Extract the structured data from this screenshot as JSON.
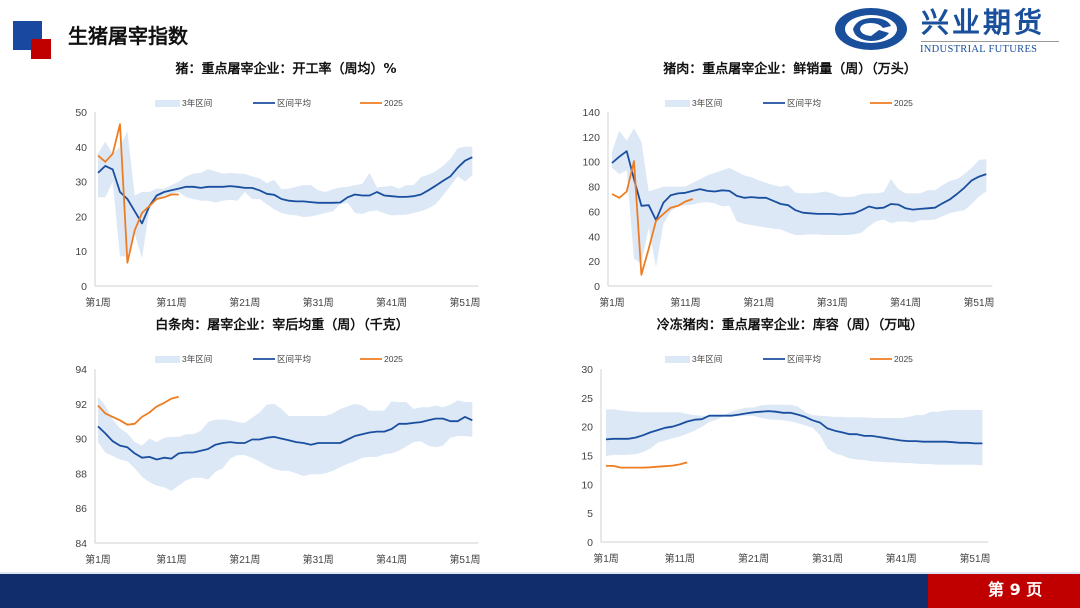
{
  "header": {
    "title": "生猪屠宰指数"
  },
  "logo": {
    "cn": "兴业期货",
    "en": "INDUSTRIAL FUTURES"
  },
  "footer": {
    "page": "第 9 页"
  },
  "colors": {
    "band": "#dce8f6",
    "avg": "#1a4fa0",
    "y2025": "#ee7d22",
    "accent_blue": "#122d6b",
    "accent_red": "#c00000"
  },
  "legend": {
    "band": "3年区间",
    "avg": "区间平均",
    "current": "2025"
  },
  "chart_data": [
    {
      "type": "area+line",
      "title": "猪：重点屠宰企业：开工率（周均）%",
      "ylim": [
        0,
        50
      ],
      "yticks": [
        0,
        10,
        20,
        30,
        40,
        50
      ],
      "xticks": [
        "第1周",
        "第11周",
        "第21周",
        "第31周",
        "第41周",
        "第51周"
      ],
      "x": "周 1-52",
      "series": [
        {
          "name": "3年区间",
          "upper": [
            38,
            41.5,
            38,
            40,
            44.5,
            26,
            27,
            27,
            28,
            28,
            29,
            30,
            31.5,
            32.3,
            32.5,
            33.6,
            33,
            32.3,
            32.5,
            32.3,
            32.2,
            31.5,
            31,
            29.5,
            30.5,
            27.8,
            28,
            28.5,
            29,
            29,
            27.5,
            27,
            27.8,
            28.3,
            28.5,
            29,
            29.3,
            32.5,
            28.3,
            28.5,
            28.8,
            28,
            29,
            29,
            31.3,
            32,
            33,
            34.5,
            36.5,
            39.6,
            40,
            40
          ],
          "lower": [
            25.5,
            25.5,
            30,
            8.5,
            8.5,
            15,
            8,
            22,
            25,
            26,
            26.5,
            27,
            25.5,
            25,
            24.5,
            24.5,
            24,
            24.5,
            24.8,
            24.5,
            27,
            25,
            25,
            23.5,
            22,
            21,
            20.5,
            20.3,
            19.8,
            20,
            20.5,
            21,
            21.5,
            23.5,
            24,
            21,
            20.7,
            21.5,
            21.7,
            20.9,
            20.3,
            20.4,
            20.5,
            21,
            21.5,
            22.3,
            23.5,
            26,
            28.7,
            31.5,
            30,
            31.8
          ]
        },
        {
          "name": "区间平均",
          "values": [
            32.5,
            34.5,
            33.5,
            27,
            25,
            21.5,
            18,
            23,
            26,
            27,
            27.5,
            28,
            28.5,
            28.5,
            28.2,
            28.5,
            28.5,
            28.5,
            28.7,
            28.5,
            28.2,
            28.2,
            27.5,
            26.5,
            26.2,
            25,
            24.5,
            24.3,
            24.3,
            24.1,
            23.9,
            23.9,
            23.9,
            24,
            25.5,
            26.3,
            26,
            26,
            27,
            26,
            25.8,
            25.6,
            25.6,
            25.8,
            26.3,
            27.5,
            28.8,
            30.2,
            31.5,
            34,
            36,
            37
          ]
        },
        {
          "name": "2025",
          "values": [
            37.5,
            35.7,
            38,
            46.5,
            6.7,
            16,
            21,
            23,
            25,
            25.5,
            26.3,
            26.3
          ]
        }
      ]
    },
    {
      "type": "area+line",
      "title": "猪肉：重点屠宰企业：鲜销量（周）（万头）",
      "ylim": [
        0,
        140
      ],
      "yticks": [
        0,
        20,
        40,
        60,
        80,
        100,
        120,
        140
      ],
      "xticks": [
        "第1周",
        "第11周",
        "第21周",
        "第31周",
        "第41周",
        "第51周"
      ],
      "series": [
        {
          "name": "3年区间",
          "upper": [
            108,
            125,
            117,
            127,
            116,
            76,
            78,
            80,
            80,
            80,
            80,
            83,
            86,
            89,
            91,
            93,
            95,
            92,
            89,
            87.5,
            85,
            83,
            81,
            80,
            81,
            75,
            74.5,
            74.5,
            75,
            76,
            74.5,
            72,
            71.5,
            72,
            74,
            74.5,
            74.5,
            75.5,
            86,
            78,
            74.5,
            74.5,
            74.5,
            77,
            77,
            81,
            84.5,
            86,
            90,
            95,
            101.5,
            102
          ],
          "lower": [
            95,
            90,
            93,
            22,
            18,
            47,
            15,
            50,
            60,
            64,
            65,
            65.5,
            67,
            67.5,
            66.5,
            64,
            64.5,
            52,
            50,
            49,
            48,
            47,
            46,
            45.5,
            43,
            41,
            41,
            41.5,
            41.5,
            41,
            41,
            41,
            41,
            41.5,
            43,
            48,
            52,
            53.5,
            50.5,
            52,
            52,
            51,
            53,
            53,
            53.5,
            56,
            58.5,
            60,
            61,
            66,
            72,
            76
          ]
        },
        {
          "name": "区间平均",
          "values": [
            99,
            104,
            108.5,
            86,
            64.5,
            65,
            53,
            67,
            73,
            74.5,
            75,
            76.5,
            78,
            76.5,
            76,
            77,
            76.5,
            72.5,
            71,
            71.5,
            71,
            71,
            68.5,
            66,
            65,
            61,
            59,
            58.5,
            58,
            58,
            58,
            57.5,
            58,
            58.5,
            61,
            64,
            62.5,
            63,
            66,
            65.5,
            62.5,
            61.5,
            62,
            62.5,
            63,
            66.5,
            69.5,
            74,
            79,
            85,
            88,
            90
          ]
        },
        {
          "name": "2025",
          "values": [
            74,
            71,
            76,
            100.5,
            9,
            30,
            52.5,
            58,
            63,
            64.5,
            68,
            70
          ]
        }
      ]
    },
    {
      "type": "area+line",
      "title": "白条肉：屠宰企业：宰后均重（周）（千克）",
      "ylim": [
        84,
        94
      ],
      "yticks": [
        84,
        86,
        88,
        90,
        92,
        94
      ],
      "xticks": [
        "第1周",
        "第11周",
        "第21周",
        "第31周",
        "第41周",
        "第51周"
      ],
      "series": [
        {
          "name": "3年区间",
          "upper": [
            92.4,
            91.9,
            91.1,
            90.6,
            90.3,
            89.8,
            89.6,
            90,
            89.8,
            90.05,
            90.1,
            90.1,
            90.25,
            90.25,
            90.45,
            90.95,
            91.1,
            91.1,
            91.05,
            90.95,
            90.9,
            91.2,
            91.5,
            91.95,
            92,
            91.7,
            91.3,
            91.3,
            91.3,
            91.3,
            91.3,
            91.3,
            91.45,
            91.7,
            91.85,
            92,
            91.9,
            91.6,
            91.6,
            91.6,
            92.15,
            92.1,
            92.1,
            91.7,
            91.8,
            91.8,
            91.9,
            91.8,
            91.95,
            92.2,
            92.1,
            92.1
          ],
          "lower": [
            89.8,
            89.2,
            89,
            88.8,
            88.7,
            88.3,
            87.8,
            87.5,
            87.3,
            87.2,
            87,
            87.3,
            87.6,
            87.75,
            87.75,
            87.65,
            88.1,
            88.3,
            88.85,
            89.05,
            89.05,
            88.9,
            88.7,
            88.45,
            88.25,
            88.15,
            88.15,
            88,
            87.85,
            87.95,
            87.95,
            88,
            88.15,
            88.35,
            88.55,
            88.7,
            88.9,
            88.95,
            88.95,
            89.1,
            89.15,
            89.3,
            89.55,
            89.8,
            89.85,
            89.6,
            89.5,
            89.6,
            90.05,
            90.15,
            90.15,
            90.1
          ]
        },
        {
          "name": "区间平均",
          "values": [
            90.7,
            90.3,
            89.85,
            89.6,
            89.5,
            89.15,
            88.9,
            88.95,
            88.8,
            88.9,
            88.85,
            89.15,
            89.2,
            89.2,
            89.3,
            89.4,
            89.65,
            89.75,
            89.8,
            89.75,
            89.75,
            89.95,
            89.95,
            90.05,
            90.1,
            90,
            89.9,
            89.8,
            89.75,
            89.65,
            89.75,
            89.75,
            89.75,
            89.75,
            89.95,
            90.15,
            90.25,
            90.35,
            90.4,
            90.4,
            90.55,
            90.85,
            90.85,
            90.9,
            90.95,
            91.05,
            91.15,
            91.15,
            91,
            91,
            91.25,
            91.05
          ]
        },
        {
          "name": "2025",
          "values": [
            91.9,
            91.45,
            91.25,
            91.05,
            90.8,
            90.85,
            91.25,
            91.5,
            91.85,
            92.05,
            92.3,
            92.4
          ]
        }
      ]
    },
    {
      "type": "area+line",
      "title": "冷冻猪肉：重点屠宰企业：库容（周）（万吨）",
      "ylim": [
        0,
        30
      ],
      "yticks": [
        0,
        5,
        10,
        15,
        20,
        25,
        30
      ],
      "xticks": [
        "第1周",
        "第11周",
        "第21周",
        "第31周",
        "第41周",
        "第51周"
      ],
      "series": [
        {
          "name": "3年区间",
          "upper": [
            23,
            23,
            22.8,
            22.7,
            22.6,
            22.5,
            22.5,
            22.5,
            22.5,
            22.5,
            22.5,
            22.2,
            22,
            21.9,
            21.9,
            21.9,
            22.1,
            22.6,
            23,
            23.3,
            23.3,
            23.7,
            23.8,
            23.8,
            23.8,
            23.8,
            23.5,
            22.5,
            22,
            21.9,
            21.8,
            21.7,
            21.7,
            21.6,
            21.6,
            21.6,
            21.5,
            21.5,
            21.5,
            21.5,
            21.5,
            21.7,
            22,
            22,
            22.6,
            22.6,
            22.8,
            22.9,
            22.9,
            22.9,
            22.9,
            22.9
          ],
          "lower": [
            14.9,
            15.1,
            15.1,
            15.1,
            15.2,
            15.6,
            16.2,
            17.2,
            17.6,
            18,
            18.3,
            18.8,
            19.3,
            20,
            20.8,
            21.2,
            21.8,
            21.8,
            21.8,
            21.9,
            21.9,
            21.5,
            21.3,
            21.2,
            21.1,
            20.9,
            20.6,
            20.2,
            19.8,
            18.5,
            16.2,
            15.4,
            15,
            14.5,
            14.3,
            14.2,
            14,
            13.9,
            13.8,
            13.8,
            13.7,
            13.7,
            13.6,
            13.5,
            13.5,
            13.4,
            13.4,
            13.4,
            13.4,
            13.4,
            13.4,
            13.3
          ]
        },
        {
          "name": "区间平均",
          "values": [
            17.8,
            17.9,
            17.9,
            17.9,
            18.1,
            18.5,
            19,
            19.4,
            19.8,
            20,
            20.4,
            20.9,
            21.2,
            21.3,
            21.9,
            21.9,
            21.9,
            21.9,
            22.1,
            22.3,
            22.5,
            22.6,
            22.7,
            22.6,
            22.4,
            22.4,
            22.1,
            21.7,
            21.1,
            20.7,
            19.7,
            19.3,
            19,
            18.7,
            18.7,
            18.4,
            18.4,
            18.2,
            18,
            17.8,
            17.6,
            17.5,
            17.5,
            17.4,
            17.4,
            17.4,
            17.4,
            17.3,
            17.2,
            17.2,
            17.1,
            17.1
          ]
        },
        {
          "name": "2025",
          "values": [
            13.2,
            13.2,
            12.9,
            12.9,
            12.9,
            12.9,
            12.95,
            13.05,
            13.15,
            13.25,
            13.45,
            13.8
          ]
        }
      ]
    }
  ]
}
